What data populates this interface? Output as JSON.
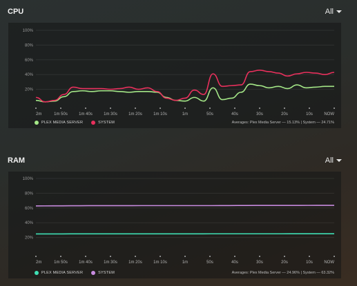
{
  "cpu": {
    "title": "CPU",
    "range": "All",
    "legend": [
      {
        "label": "PLEX MEDIA SERVER",
        "color": "#a5e888"
      },
      {
        "label": "SYSTEM",
        "color": "#e8305c"
      }
    ],
    "averages_text": "Averages: Plex Media Server — 15.13% | System — 24.71%",
    "chart_data": {
      "type": "line",
      "yticks": [
        "100%",
        "80%",
        "60%",
        "40%",
        "20%"
      ],
      "ylim": [
        0,
        100
      ],
      "xticks": [
        "2m",
        "1m 50s",
        "1m 40s",
        "1m 30s",
        "1m 20s",
        "1m 10s",
        "1m",
        "50s",
        "40s",
        "30s",
        "20s",
        "10s",
        "NOW"
      ],
      "series": [
        {
          "name": "PLEX MEDIA SERVER",
          "color": "#a5e888",
          "values": [
            5,
            3,
            4,
            10,
            17,
            18,
            17,
            18,
            18,
            17,
            16,
            17,
            17,
            16,
            9,
            5,
            4,
            9,
            4,
            22,
            6,
            8,
            16,
            27,
            25,
            22,
            24,
            21,
            26,
            22,
            23,
            24,
            24
          ]
        },
        {
          "name": "SYSTEM",
          "color": "#e8305c",
          "values": [
            9,
            3,
            5,
            13,
            23,
            21,
            21,
            21,
            20,
            21,
            23,
            20,
            22,
            17,
            8,
            5,
            8,
            19,
            13,
            41,
            24,
            25,
            26,
            44,
            46,
            44,
            42,
            38,
            41,
            43,
            42,
            40,
            43
          ]
        }
      ]
    }
  },
  "ram": {
    "title": "RAM",
    "range": "All",
    "legend": [
      {
        "label": "PLEX MEDIA SERVER",
        "color": "#3fe0b5"
      },
      {
        "label": "SYSTEM",
        "color": "#c98ce0"
      }
    ],
    "averages_text": "Averages: Plex Media Server — 24.96% | System — 63.32%",
    "chart_data": {
      "type": "line",
      "yticks": [
        "100%",
        "80%",
        "60%",
        "40%",
        "20%"
      ],
      "ylim": [
        0,
        100
      ],
      "xticks": [
        "2m",
        "1m 50s",
        "1m 40s",
        "1m 30s",
        "1m 20s",
        "1m 10s",
        "1m",
        "50s",
        "40s",
        "30s",
        "20s",
        "10s",
        "NOW"
      ],
      "series": [
        {
          "name": "PLEX MEDIA SERVER",
          "color": "#3fe0b5",
          "values": [
            24.8,
            24.8,
            24.9,
            24.9,
            24.9,
            24.9,
            24.9,
            24.9,
            24.9,
            24.9,
            25.0,
            25.0,
            25.0,
            25.0,
            25.0,
            25.1,
            25.1,
            25.1
          ]
        },
        {
          "name": "SYSTEM",
          "color": "#c98ce0",
          "values": [
            62.8,
            62.9,
            63.0,
            63.1,
            63.1,
            63.1,
            63.2,
            63.2,
            63.2,
            63.2,
            63.2,
            63.3,
            63.4,
            63.5,
            63.5,
            63.5,
            63.6,
            63.6
          ]
        }
      ]
    }
  }
}
